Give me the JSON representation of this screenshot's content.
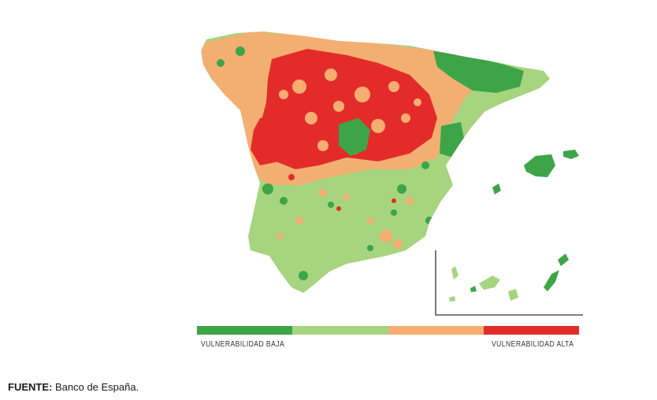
{
  "legend": {
    "colors": [
      "#3da548",
      "#a6d47f",
      "#f7ad72",
      "#e32c2a"
    ],
    "label_low": "VULNERABILIDAD BAJA",
    "label_high": "VULNERABILIDAD ALTA"
  },
  "source": {
    "label": "FUENTE:",
    "text": "Banco de España."
  },
  "map": {
    "regions": [
      "Peninsula",
      "Baleares",
      "Canarias (inset)"
    ],
    "base_color": "#a6d47f"
  }
}
